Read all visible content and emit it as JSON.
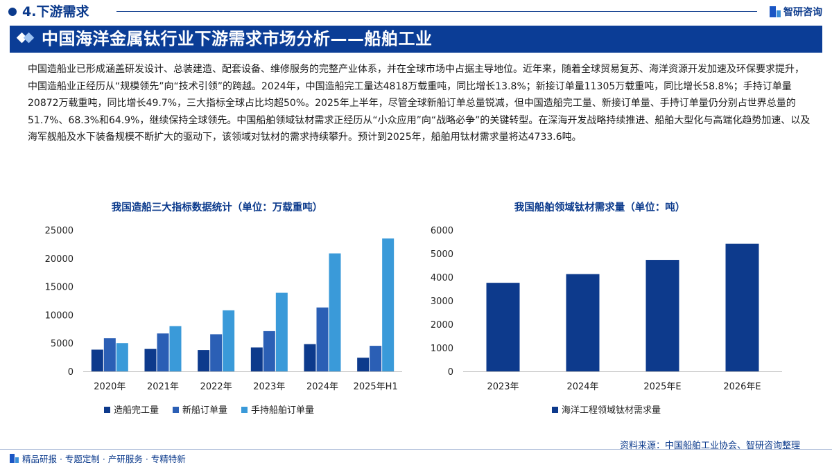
{
  "header": {
    "section": "4.下游需求",
    "brand": "智研咨询"
  },
  "banner": {
    "title": "中国海洋金属钛行业下游需求市场分析——船舶工业"
  },
  "body_text": "中国造船业已形成涵盖研发设计、总装建造、配套设备、维修服务的完整产业体系，并在全球市场中占据主导地位。近年来，随着全球贸易复苏、海洋资源开发加速及环保要求提升，中国造船业正经历从“规模领先”向“技术引领”的跨越。2024年，中国造船完工量达4818万载重吨，同比增长13.8%；新接订单量11305万载重吨，同比增长58.8%；手持订单量20872万载重吨，同比增长49.7%，三大指标全球占比均超50%。2025年上半年，尽管全球新船订单总量锐减，但中国造船完工量、新接订单量、手持订单量仍分别占世界总量的51.7%、68.3%和64.9%，继续保持全球领先。中国船舶领域钛材需求正经历从“小众应用”向“战略必争”的关键转型。在深海开发战略持续推进、船舶大型化与高端化趋势加速、以及海军舰船及水下装备规模不断扩大的驱动下，该领域对钛材的需求持续攀升。预计到2025年，船舶用钛材需求量将达4733.6吨。",
  "chart_data": [
    {
      "type": "bar",
      "title": "我国造船三大指标数据统计（单位：万载重吨）",
      "categories": [
        "2020年",
        "2021年",
        "2022年",
        "2023年",
        "2024年",
        "2025年H1"
      ],
      "series": [
        {
          "name": "造船完工量",
          "color": "#0d3a8c",
          "values": [
            3853,
            3970,
            3786,
            4232,
            4818,
            2413
          ]
        },
        {
          "name": "新船订单量",
          "color": "#2b5fb5",
          "values": [
            5861,
            6707,
            6568,
            7120,
            11305,
            4523
          ]
        },
        {
          "name": "手持船舶订单量",
          "color": "#3a9ad9",
          "values": [
            5000,
            8000,
            10800,
            13900,
            20872,
            23500
          ]
        }
      ],
      "yticks": [
        "25000",
        "20000",
        "15000",
        "10000",
        "5000",
        "0"
      ],
      "ylim": [
        0,
        25000
      ],
      "legend": "bottom",
      "grid": false
    },
    {
      "type": "bar",
      "title": "我国船舶领域钛材需求量（单位：吨）",
      "categories": [
        "2023年",
        "2024年",
        "2025年E",
        "2026年E"
      ],
      "series": [
        {
          "name": "海洋工程领域钛材需求量",
          "color": "#0d3a8c",
          "values": [
            3760,
            4130,
            4733.6,
            5420
          ]
        }
      ],
      "yticks": [
        "6000",
        "5000",
        "4000",
        "3000",
        "2000",
        "1000",
        "0"
      ],
      "ylim": [
        0,
        6000
      ],
      "legend": "bottom",
      "grid": false
    }
  ],
  "source": "资料来源：中国船舶工业协会、智研咨询整理",
  "footer": "精品研报 · 专题定制 · 产研服务 · 专精特新"
}
